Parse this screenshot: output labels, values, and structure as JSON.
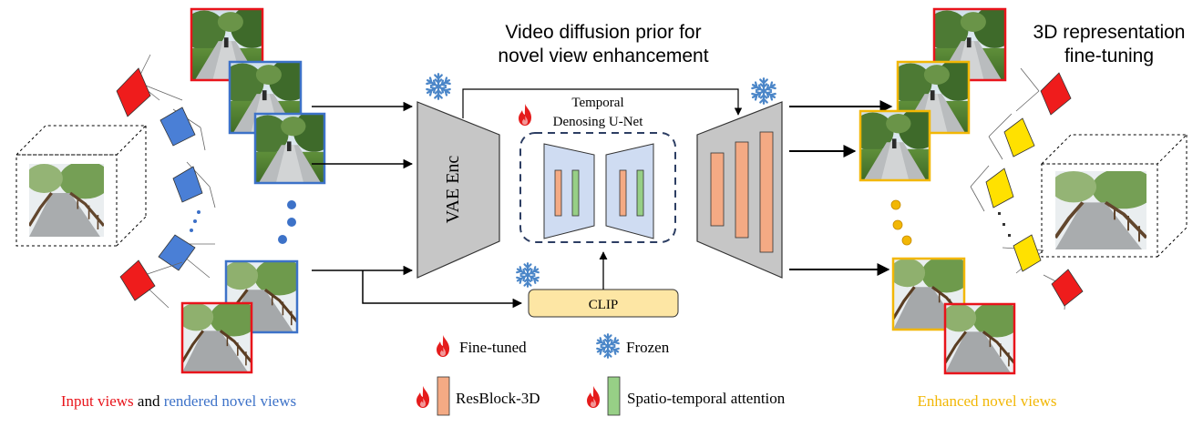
{
  "diagram": {
    "title_center": [
      "Video diffusion prior for",
      "novel view enhancement"
    ],
    "title_right": [
      "3D representation",
      "fine-tuning"
    ],
    "vae_encoder_label": "VAE Enc",
    "unet_label": [
      "Temporal",
      "Denosing U-Net"
    ],
    "clip_label": "CLIP",
    "legend": {
      "fine_tuned": "Fine-tuned",
      "frozen": "Frozen",
      "resblock": "ResBlock-3D",
      "attention": "Spatio-temporal attention"
    },
    "caption_left": {
      "input": "Input views",
      "and": " and ",
      "rendered": "rendered novel views"
    },
    "caption_right": "Enhanced novel views"
  },
  "colors": {
    "input_view_frame": "#e8141b",
    "rendered_view_frame": "#3d72c8",
    "enhanced_view_frame": "#f2b705",
    "camera_red": "#ef1c1c",
    "camera_blue": "#4a7fd6",
    "camera_yellow": "#ffe100",
    "block_gray": "#c6c6c6",
    "unet_fill": "#cfdcf2",
    "resblock": "#f4aa84",
    "attention": "#97cf86",
    "clip_fill": "#fde6a4",
    "snowflake": "#4b86c8",
    "flame": "#e51c1c"
  }
}
